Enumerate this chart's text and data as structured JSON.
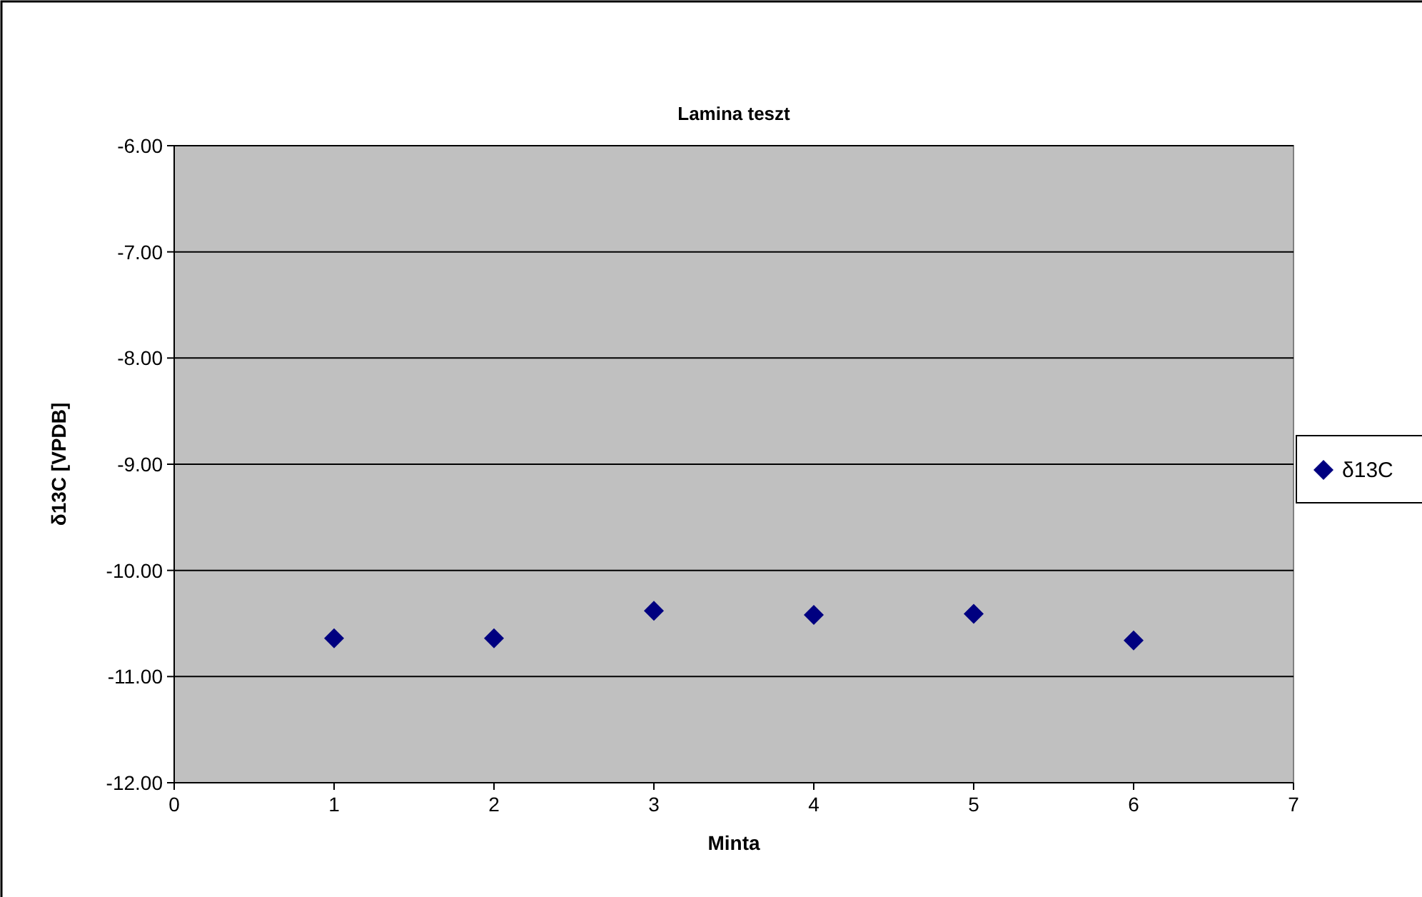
{
  "chart_data": {
    "type": "scatter",
    "title": "Lamina teszt",
    "xlabel": "Minta",
    "ylabel": "δ13C [VPDB]",
    "x": [
      1,
      2,
      3,
      4,
      5,
      6
    ],
    "series": [
      {
        "name": "δ13C",
        "color": "#000080",
        "values": [
          -10.64,
          -10.64,
          -10.38,
          -10.42,
          -10.41,
          -10.66
        ]
      }
    ],
    "xlim": [
      0,
      7
    ],
    "xticks": [
      0,
      1,
      2,
      3,
      4,
      5,
      6,
      7
    ],
    "ylim": [
      -12,
      -6
    ],
    "yticks": [
      {
        "value": -12,
        "label": "-12.00"
      },
      {
        "value": -11,
        "label": "-11.00"
      },
      {
        "value": -10,
        "label": "-10.00"
      },
      {
        "value": -9,
        "label": "-9.00"
      },
      {
        "value": -8,
        "label": "-8.00"
      },
      {
        "value": -7,
        "label": "-7.00"
      },
      {
        "value": -6,
        "label": "-6.00"
      }
    ],
    "grid": "y",
    "legend": "right",
    "marker": "diamond"
  }
}
